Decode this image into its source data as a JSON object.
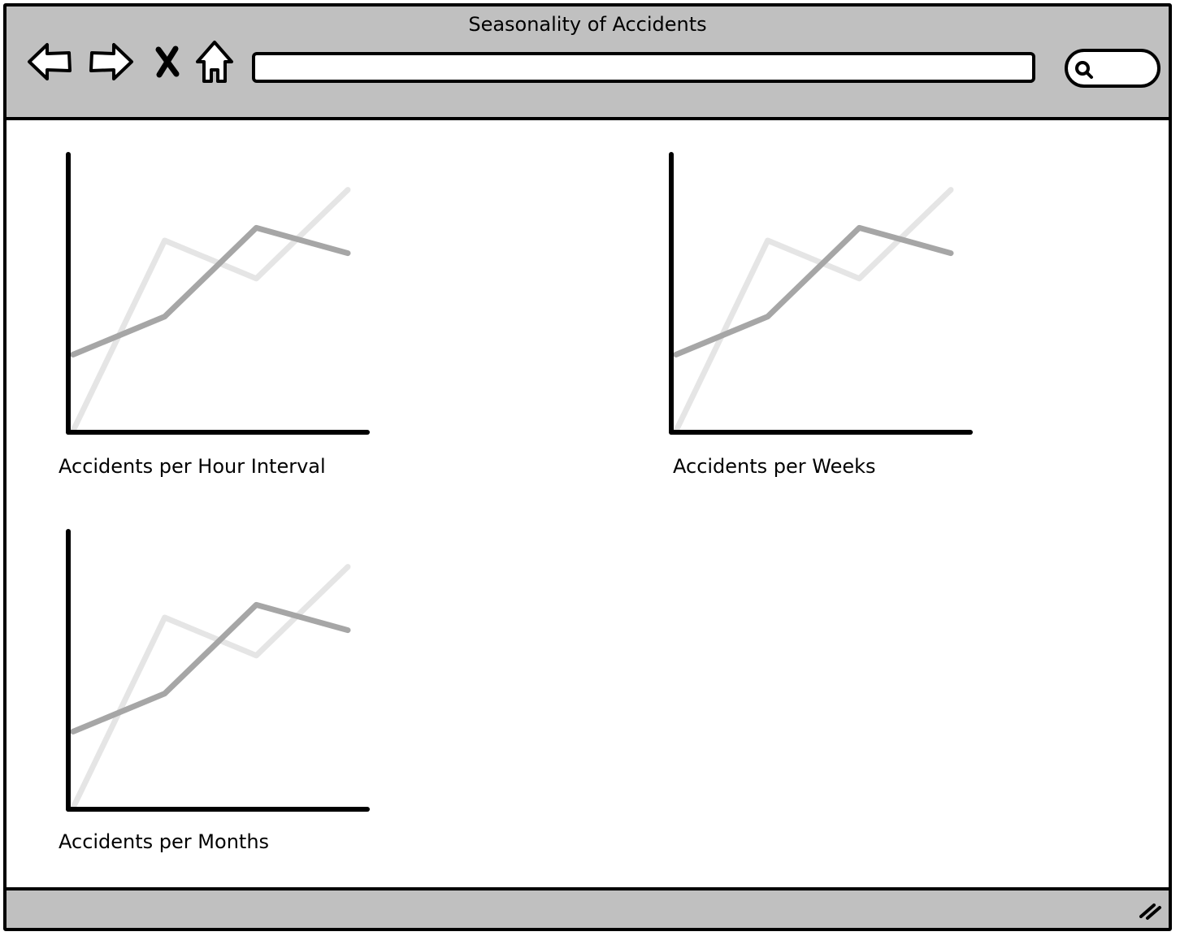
{
  "window": {
    "title": "Seasonality of Accidents"
  },
  "toolbar": {
    "back_icon": "arrow-left-icon",
    "forward_icon": "arrow-right-icon",
    "stop_icon": "close-icon",
    "home_icon": "home-icon",
    "address_value": "",
    "search_icon": "search-icon",
    "search_value": ""
  },
  "charts": [
    {
      "label": "Accidents per Hour Interval"
    },
    {
      "label": "Accidents per Weeks"
    },
    {
      "label": "Accidents per Months"
    }
  ],
  "colors": {
    "chrome": "#c0c0c0",
    "series_dark": "#a6a6a6",
    "series_light": "#e5e5e5"
  },
  "chart_data": [
    {
      "type": "line",
      "title": "Accidents per Hour Interval",
      "x": [
        0,
        1,
        2,
        3
      ],
      "series": [
        {
          "values": [
            3,
            4.5,
            8,
            7
          ]
        },
        {
          "values": [
            0,
            7.5,
            6,
            9.5
          ]
        }
      ],
      "ylim": [
        0,
        10
      ],
      "grid": false
    },
    {
      "type": "line",
      "title": "Accidents per Weeks",
      "x": [
        0,
        1,
        2,
        3
      ],
      "series": [
        {
          "values": [
            3,
            4.5,
            8,
            7
          ]
        },
        {
          "values": [
            0,
            7.5,
            6,
            9.5
          ]
        }
      ],
      "ylim": [
        0,
        10
      ],
      "grid": false
    },
    {
      "type": "line",
      "title": "Accidents per Months",
      "x": [
        0,
        1,
        2,
        3
      ],
      "series": [
        {
          "values": [
            3,
            4.5,
            8,
            7
          ]
        },
        {
          "values": [
            0,
            7.5,
            6,
            9.5
          ]
        }
      ],
      "ylim": [
        0,
        10
      ],
      "grid": false
    }
  ]
}
